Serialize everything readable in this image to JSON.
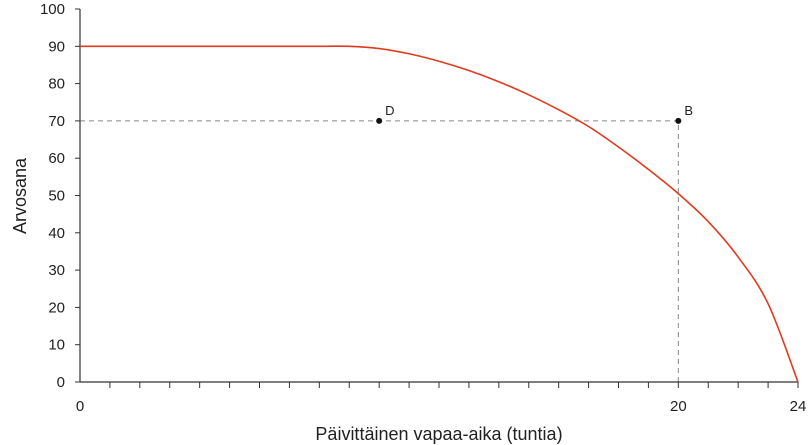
{
  "chart_data": {
    "type": "line",
    "xlabel": "Päivittäinen vapaa-aika (tuntia)",
    "ylabel": "Arvosana",
    "xlim": [
      0,
      24
    ],
    "ylim": [
      0,
      100
    ],
    "x_ticks_labeled": [
      "0",
      "20",
      "24"
    ],
    "x_tick_values": [
      0,
      20,
      24
    ],
    "y_ticks": [
      0,
      10,
      20,
      30,
      40,
      50,
      60,
      70,
      80,
      90,
      100
    ],
    "grid": false,
    "legend": "none",
    "series": [
      {
        "color": "#e03a1e",
        "x": [
          0,
          2,
          4,
          6,
          8,
          9,
          10,
          11,
          12,
          13,
          14,
          15,
          16,
          17,
          18,
          19,
          20,
          21,
          22,
          23,
          24
        ],
        "y": [
          90,
          90,
          90,
          90,
          90,
          90,
          89.4,
          88,
          86,
          83.5,
          80.5,
          77,
          73,
          68.5,
          63,
          57,
          50.5,
          43,
          33.5,
          21,
          0
        ]
      }
    ],
    "points": [
      {
        "label": "D",
        "x": 10,
        "y": 70
      },
      {
        "label": "B",
        "x": 20,
        "y": 70
      }
    ],
    "reference_lines": [
      {
        "type": "horizontal",
        "y": 70,
        "x_from": 0,
        "x_to": 20
      },
      {
        "type": "vertical",
        "x": 20,
        "y_from": 0,
        "y_to": 70
      }
    ]
  }
}
